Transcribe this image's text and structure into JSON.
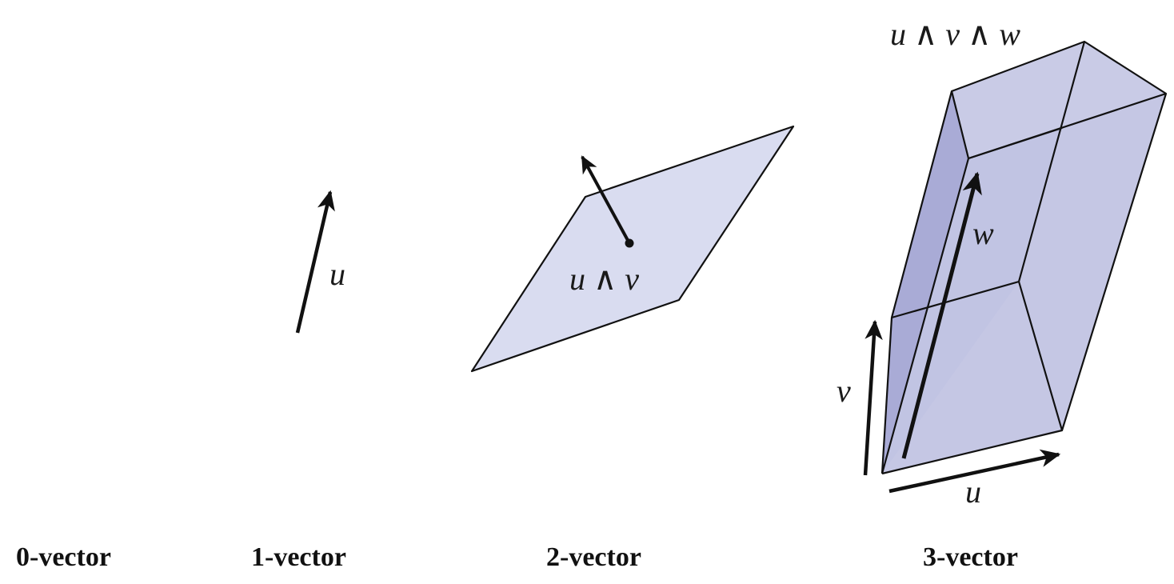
{
  "colors": {
    "fill_light": "#d9dcf0",
    "fill_face": "#bfc1e0",
    "fill_dark": "#a9abd6",
    "stroke": "#111111",
    "background": "#ffffff"
  },
  "panels": [
    {
      "id": "zero",
      "caption": "0-vector"
    },
    {
      "id": "one",
      "caption": "1-vector",
      "labels": {
        "u": "u"
      }
    },
    {
      "id": "two",
      "caption": "2-vector",
      "labels": {
        "wedge": "u ∧ v"
      }
    },
    {
      "id": "three",
      "caption": "3-vector",
      "labels": {
        "wedge": "u ∧ v ∧ w",
        "u": "u",
        "v": "v",
        "w": "w"
      }
    }
  ]
}
